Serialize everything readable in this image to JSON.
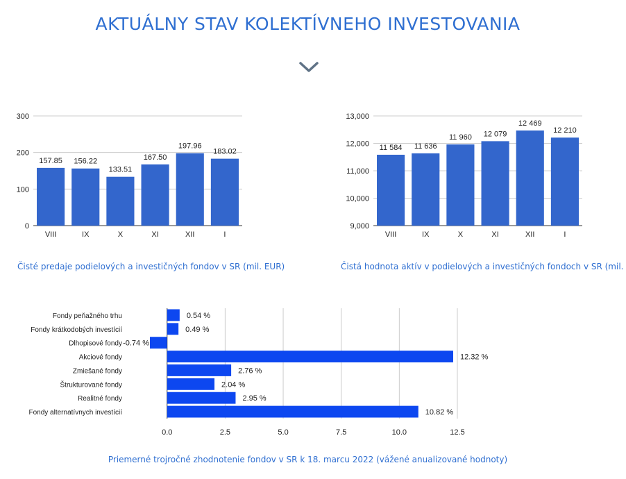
{
  "page": {
    "title": "AKTUÁLNY STAV KOLEKTÍVNEHO INVESTOVANIA",
    "accent_color": "#2f6fd1",
    "chevron_color": "#5f7286",
    "icon": "chevron-down-icon"
  },
  "captions": {
    "sales": "Čisté predaje podielových a investičných fondov v SR (mil. EUR)",
    "assets": "Čistá hodnota aktív v podielových a investičných fondoch v SR (mil. EUR)",
    "returns": "Priemerné trojročné zhodnotenie fondov v SR k 18. marcu 2022 (vážené anualizované hodnoty)"
  },
  "chart_data": [
    {
      "id": "sales",
      "type": "bar",
      "categories": [
        "VIII",
        "IX",
        "X",
        "XI",
        "XII",
        "I"
      ],
      "values": [
        157.85,
        156.22,
        133.51,
        167.5,
        197.96,
        183.02
      ],
      "data_labels": [
        "157.85",
        "156.22",
        "133.51",
        "167.50",
        "197.96",
        "183.02"
      ],
      "ylim": [
        0,
        300
      ],
      "yticks": [
        0,
        100,
        200,
        300
      ],
      "ytick_labels": [
        "0",
        "100",
        "200",
        "300"
      ],
      "grid": true,
      "color": "#3366cc"
    },
    {
      "id": "assets",
      "type": "bar",
      "categories": [
        "VIII",
        "IX",
        "X",
        "XI",
        "XII",
        "I"
      ],
      "values": [
        11584,
        11636,
        11960,
        12079,
        12469,
        12210
      ],
      "data_labels": [
        "11 584",
        "11 636",
        "11 960",
        "12 079",
        "12 469",
        "12 210"
      ],
      "ylim": [
        9000,
        13000
      ],
      "yticks": [
        9000,
        10000,
        11000,
        12000,
        13000
      ],
      "ytick_labels": [
        "9,000",
        "10,000",
        "11,000",
        "12,000",
        "13,000"
      ],
      "grid": true,
      "color": "#3366cc"
    },
    {
      "id": "returns",
      "type": "bar",
      "orientation": "horizontal",
      "categories": [
        "Fondy peňažného trhu",
        "Fondy krátkodobých investícií",
        "Dlhopisové fondy",
        "Akciové fondy",
        "Zmiešané fondy",
        "Štrukturované fondy",
        "Realitné fondy",
        "Fondy alternatívnych investícií"
      ],
      "values": [
        0.54,
        0.49,
        -0.74,
        12.32,
        2.76,
        2.04,
        2.95,
        10.82
      ],
      "data_labels": [
        "0.54 %",
        "0.49 %",
        "-0.74 %",
        "12.32 %",
        "2.76 %",
        "2.04 %",
        "2.95 %",
        "10.82 %"
      ],
      "xlim": [
        -0.74,
        12.5
      ],
      "xticks": [
        0,
        2.5,
        5,
        7.5,
        10,
        12.5
      ],
      "xtick_labels": [
        "0.0",
        "2.5",
        "5.0",
        "7.5",
        "10.0",
        "12.5"
      ],
      "grid": true,
      "color": "#0d47f0"
    }
  ]
}
